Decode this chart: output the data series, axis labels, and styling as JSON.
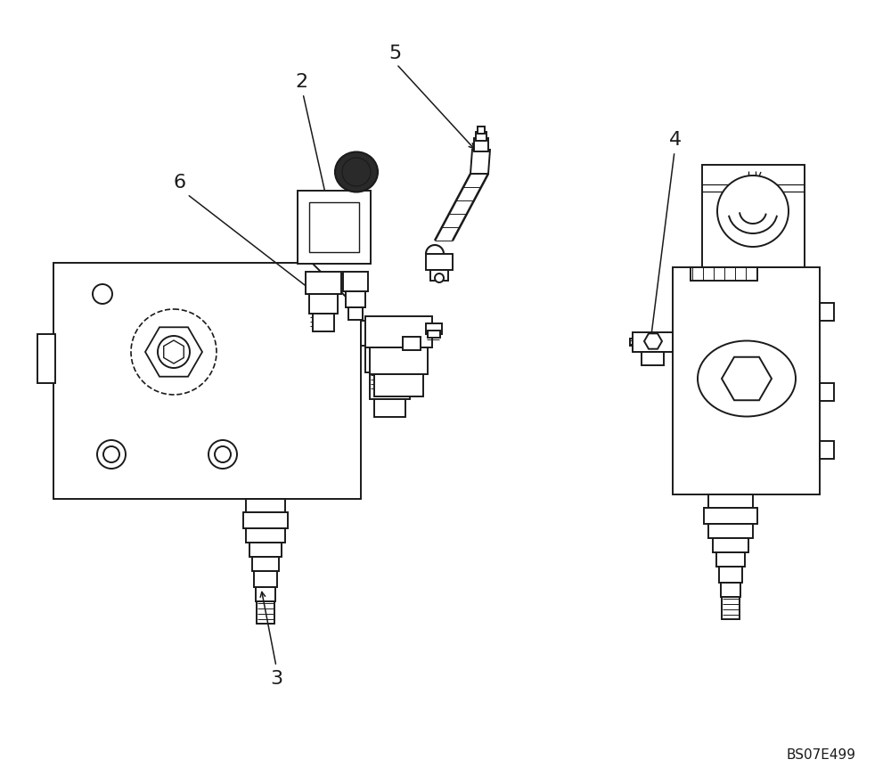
{
  "background_color": "#ffffff",
  "line_color": "#1a1a1a",
  "figure_code": "BS07E499",
  "label_fontsize": 16,
  "code_fontsize": 11,
  "figsize": [
    10.0,
    8.8
  ],
  "dpi": 100
}
